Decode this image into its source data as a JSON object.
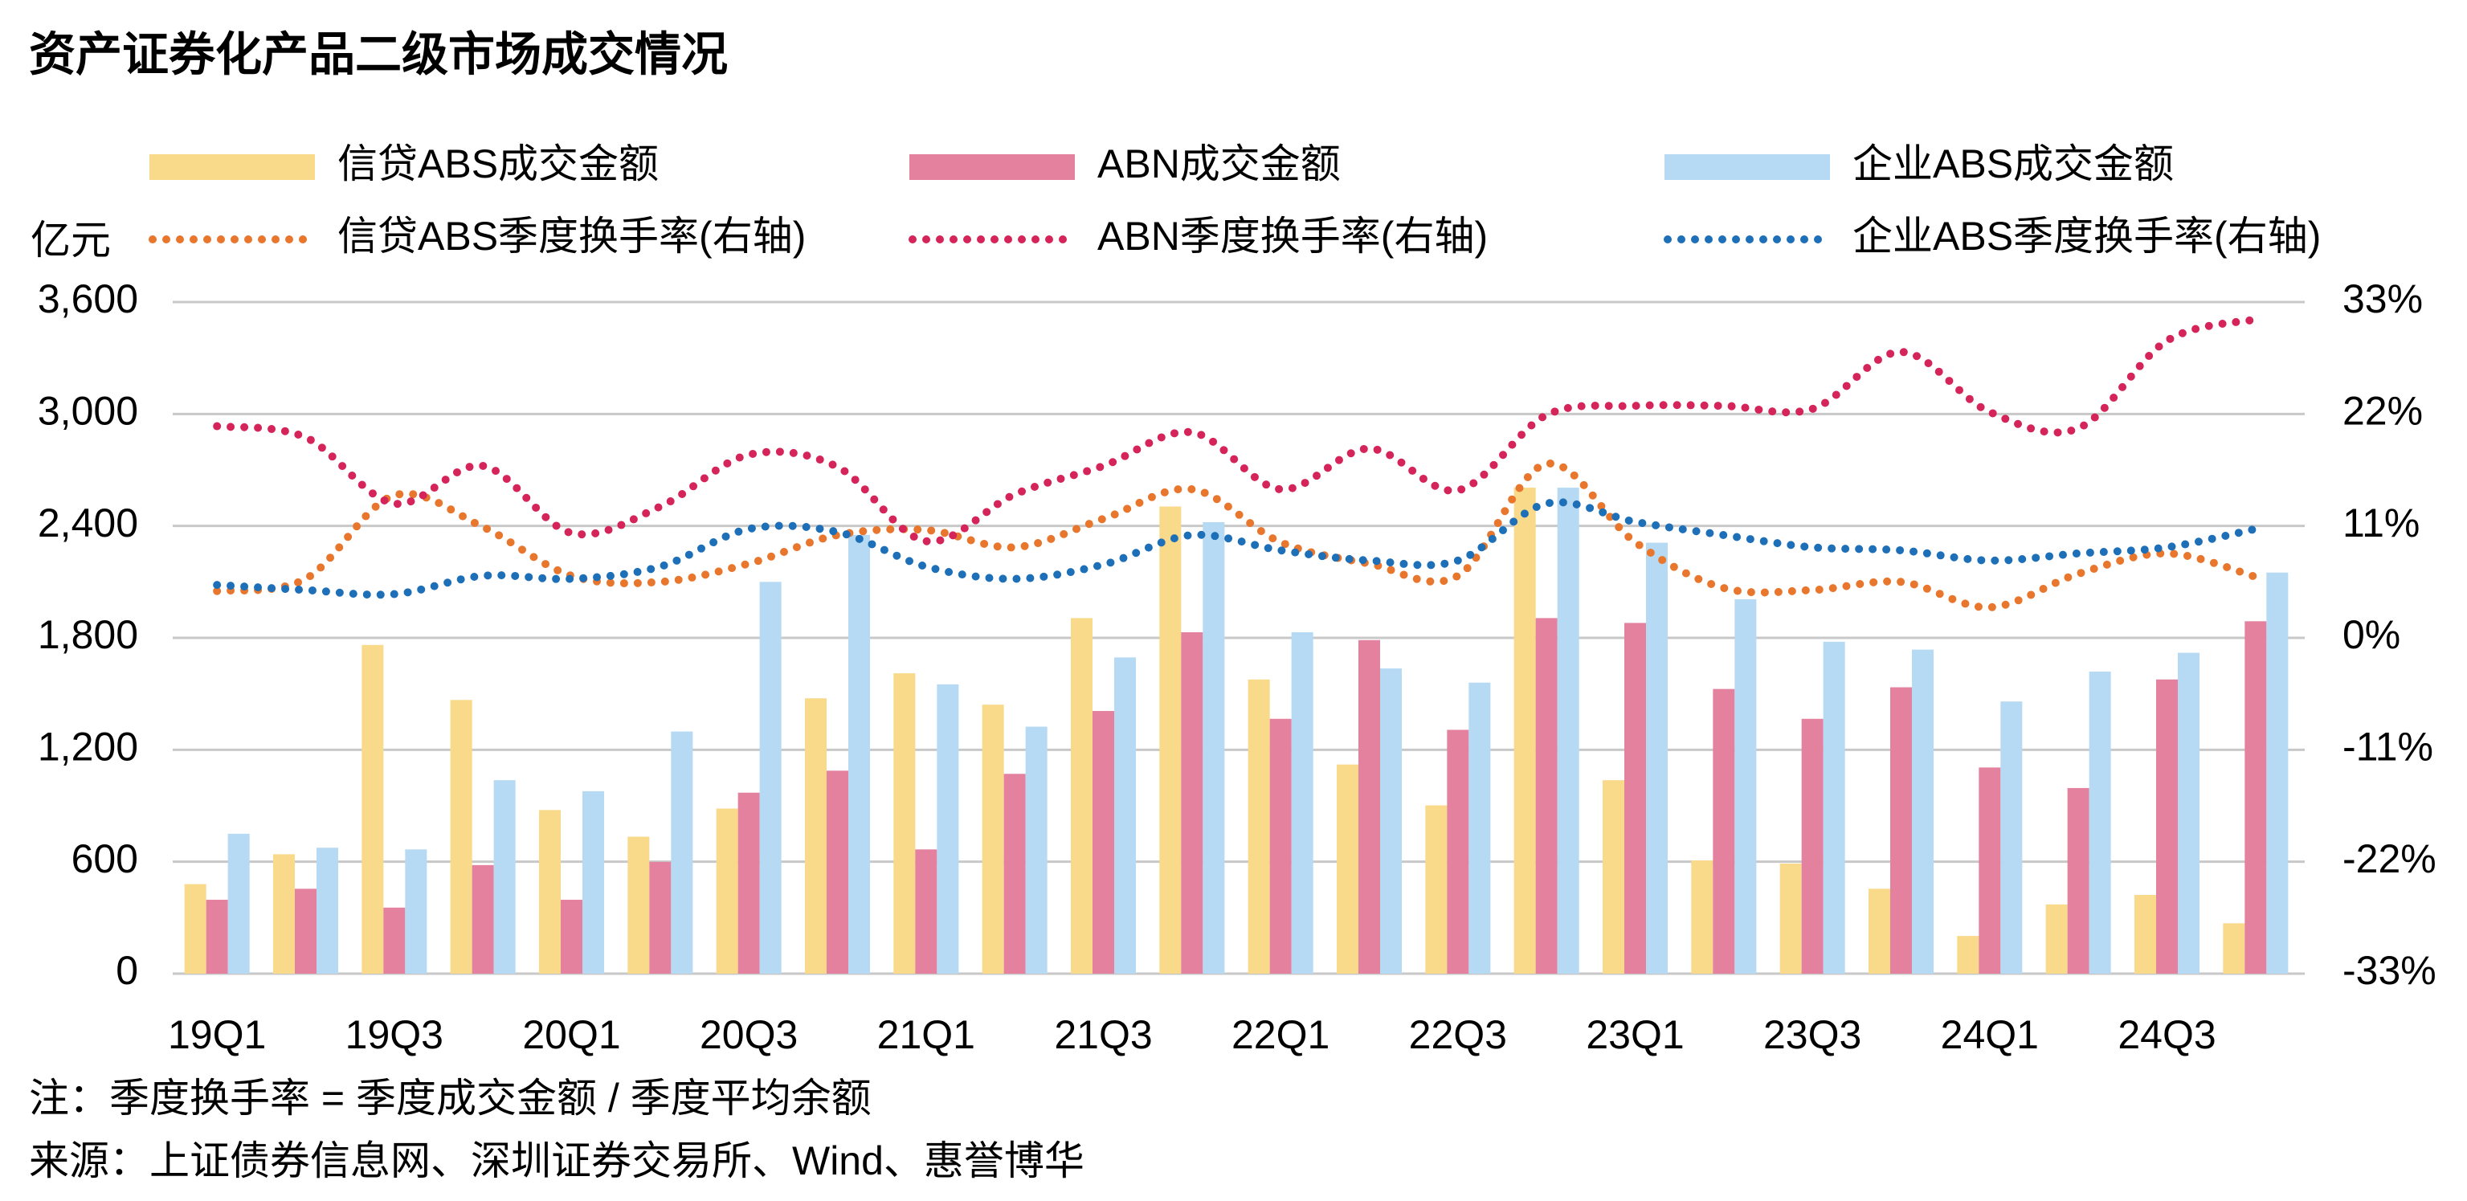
{
  "chart_data": {
    "type": "bar",
    "title": "资产证券化产品二级市场成交情况",
    "y_label": "亿元",
    "notes": [
      "注：季度换手率 = 季度成交金额 / 季度平均余额",
      "来源：上证债券信息网、深圳证券交易所、Wind、惠誉博华"
    ],
    "categories": [
      "19Q1",
      null,
      "19Q3",
      null,
      "20Q1",
      null,
      "20Q3",
      null,
      "21Q1",
      null,
      "21Q3",
      null,
      "22Q1",
      null,
      "22Q3",
      null,
      "23Q1",
      null,
      "23Q3",
      null,
      "24Q1",
      null,
      "24Q3",
      null
    ],
    "ylim": [
      0,
      3600
    ],
    "yticks": [
      0,
      600,
      {
        "value": 1200,
        "label": "1,200"
      },
      {
        "value": 1800,
        "label": "1,800"
      },
      {
        "value": 2400,
        "label": "2,400"
      },
      {
        "value": 3000,
        "label": "3,000"
      },
      {
        "value": 3600,
        "label": "3,600"
      }
    ],
    "y2lim": [
      -33,
      33
    ],
    "y2ticks": [
      {
        "value": -33,
        "label": "-33%"
      },
      {
        "value": -22,
        "label": "-22%"
      },
      {
        "value": -11,
        "label": "-11%"
      },
      {
        "value": 0,
        "label": "0%"
      },
      {
        "value": 11,
        "label": "11%"
      },
      {
        "value": 22,
        "label": "22%"
      },
      {
        "value": 33,
        "label": "33%"
      }
    ],
    "grid": true,
    "series": [
      {
        "name": "信贷ABS成交金额",
        "type": "bar",
        "color": "#f9d98a",
        "values": [
          480,
          640,
          1762,
          1467,
          877,
          734,
          885,
          1476,
          1610,
          1442,
          1906,
          2504,
          1577,
          1121,
          902,
          2605,
          1037,
          607,
          590,
          455,
          202,
          371,
          422,
          270
        ]
      },
      {
        "name": "ABN成交金额",
        "type": "bar",
        "color": "#e3819f",
        "values": [
          396,
          455,
          354,
          582,
          396,
          599,
          970,
          1088,
          666,
          1071,
          1408,
          1830,
          1366,
          1788,
          1307,
          1906,
          1880,
          1526,
          1366,
          1535,
          1105,
          995,
          1577,
          1889
        ]
      },
      {
        "name": "企业ABS成交金额",
        "type": "bar",
        "color": "#b6daf3",
        "values": [
          750,
          675,
          666,
          1037,
          978,
          1298,
          2100,
          2352,
          1551,
          1324,
          1695,
          2420,
          1830,
          1636,
          1560,
          2605,
          2310,
          2007,
          1779,
          1737,
          1459,
          1619,
          1720,
          2150
        ]
      },
      {
        "name": "信贷ABS季度换手率(右轴)",
        "type": "line",
        "axis": "y2",
        "color": "#e8762c",
        "values": [
          4.6,
          5.8,
          14.0,
          10.9,
          6.1,
          5.5,
          7.3,
          10.1,
          10.6,
          8.9,
          11.7,
          14.6,
          9.4,
          7.3,
          6.1,
          17.1,
          9.4,
          4.9,
          4.7,
          5.5,
          3.0,
          6.3,
          8.3,
          6.0
        ]
      },
      {
        "name": "ABN季度换手率(右轴)",
        "type": "line",
        "axis": "y2",
        "color": "#d4245a",
        "values": [
          20.8,
          19.7,
          13.2,
          16.9,
          10.3,
          12.9,
          18.0,
          16.8,
          9.5,
          14.1,
          16.9,
          20.2,
          14.6,
          18.6,
          14.5,
          21.9,
          22.8,
          22.8,
          22.5,
          28.1,
          22.2,
          20.6,
          29.2,
          31.3
        ]
      },
      {
        "name": "企业ABS季度换手率(右轴)",
        "type": "line",
        "axis": "y2",
        "color": "#1d6fb8",
        "values": [
          5.2,
          4.7,
          4.3,
          6.1,
          5.8,
          7.0,
          10.7,
          10.4,
          7.0,
          5.8,
          7.2,
          10.1,
          8.6,
          7.6,
          7.6,
          13.2,
          11.4,
          10.1,
          8.9,
          8.6,
          7.6,
          8.3,
          8.9,
          10.7
        ]
      }
    ]
  }
}
